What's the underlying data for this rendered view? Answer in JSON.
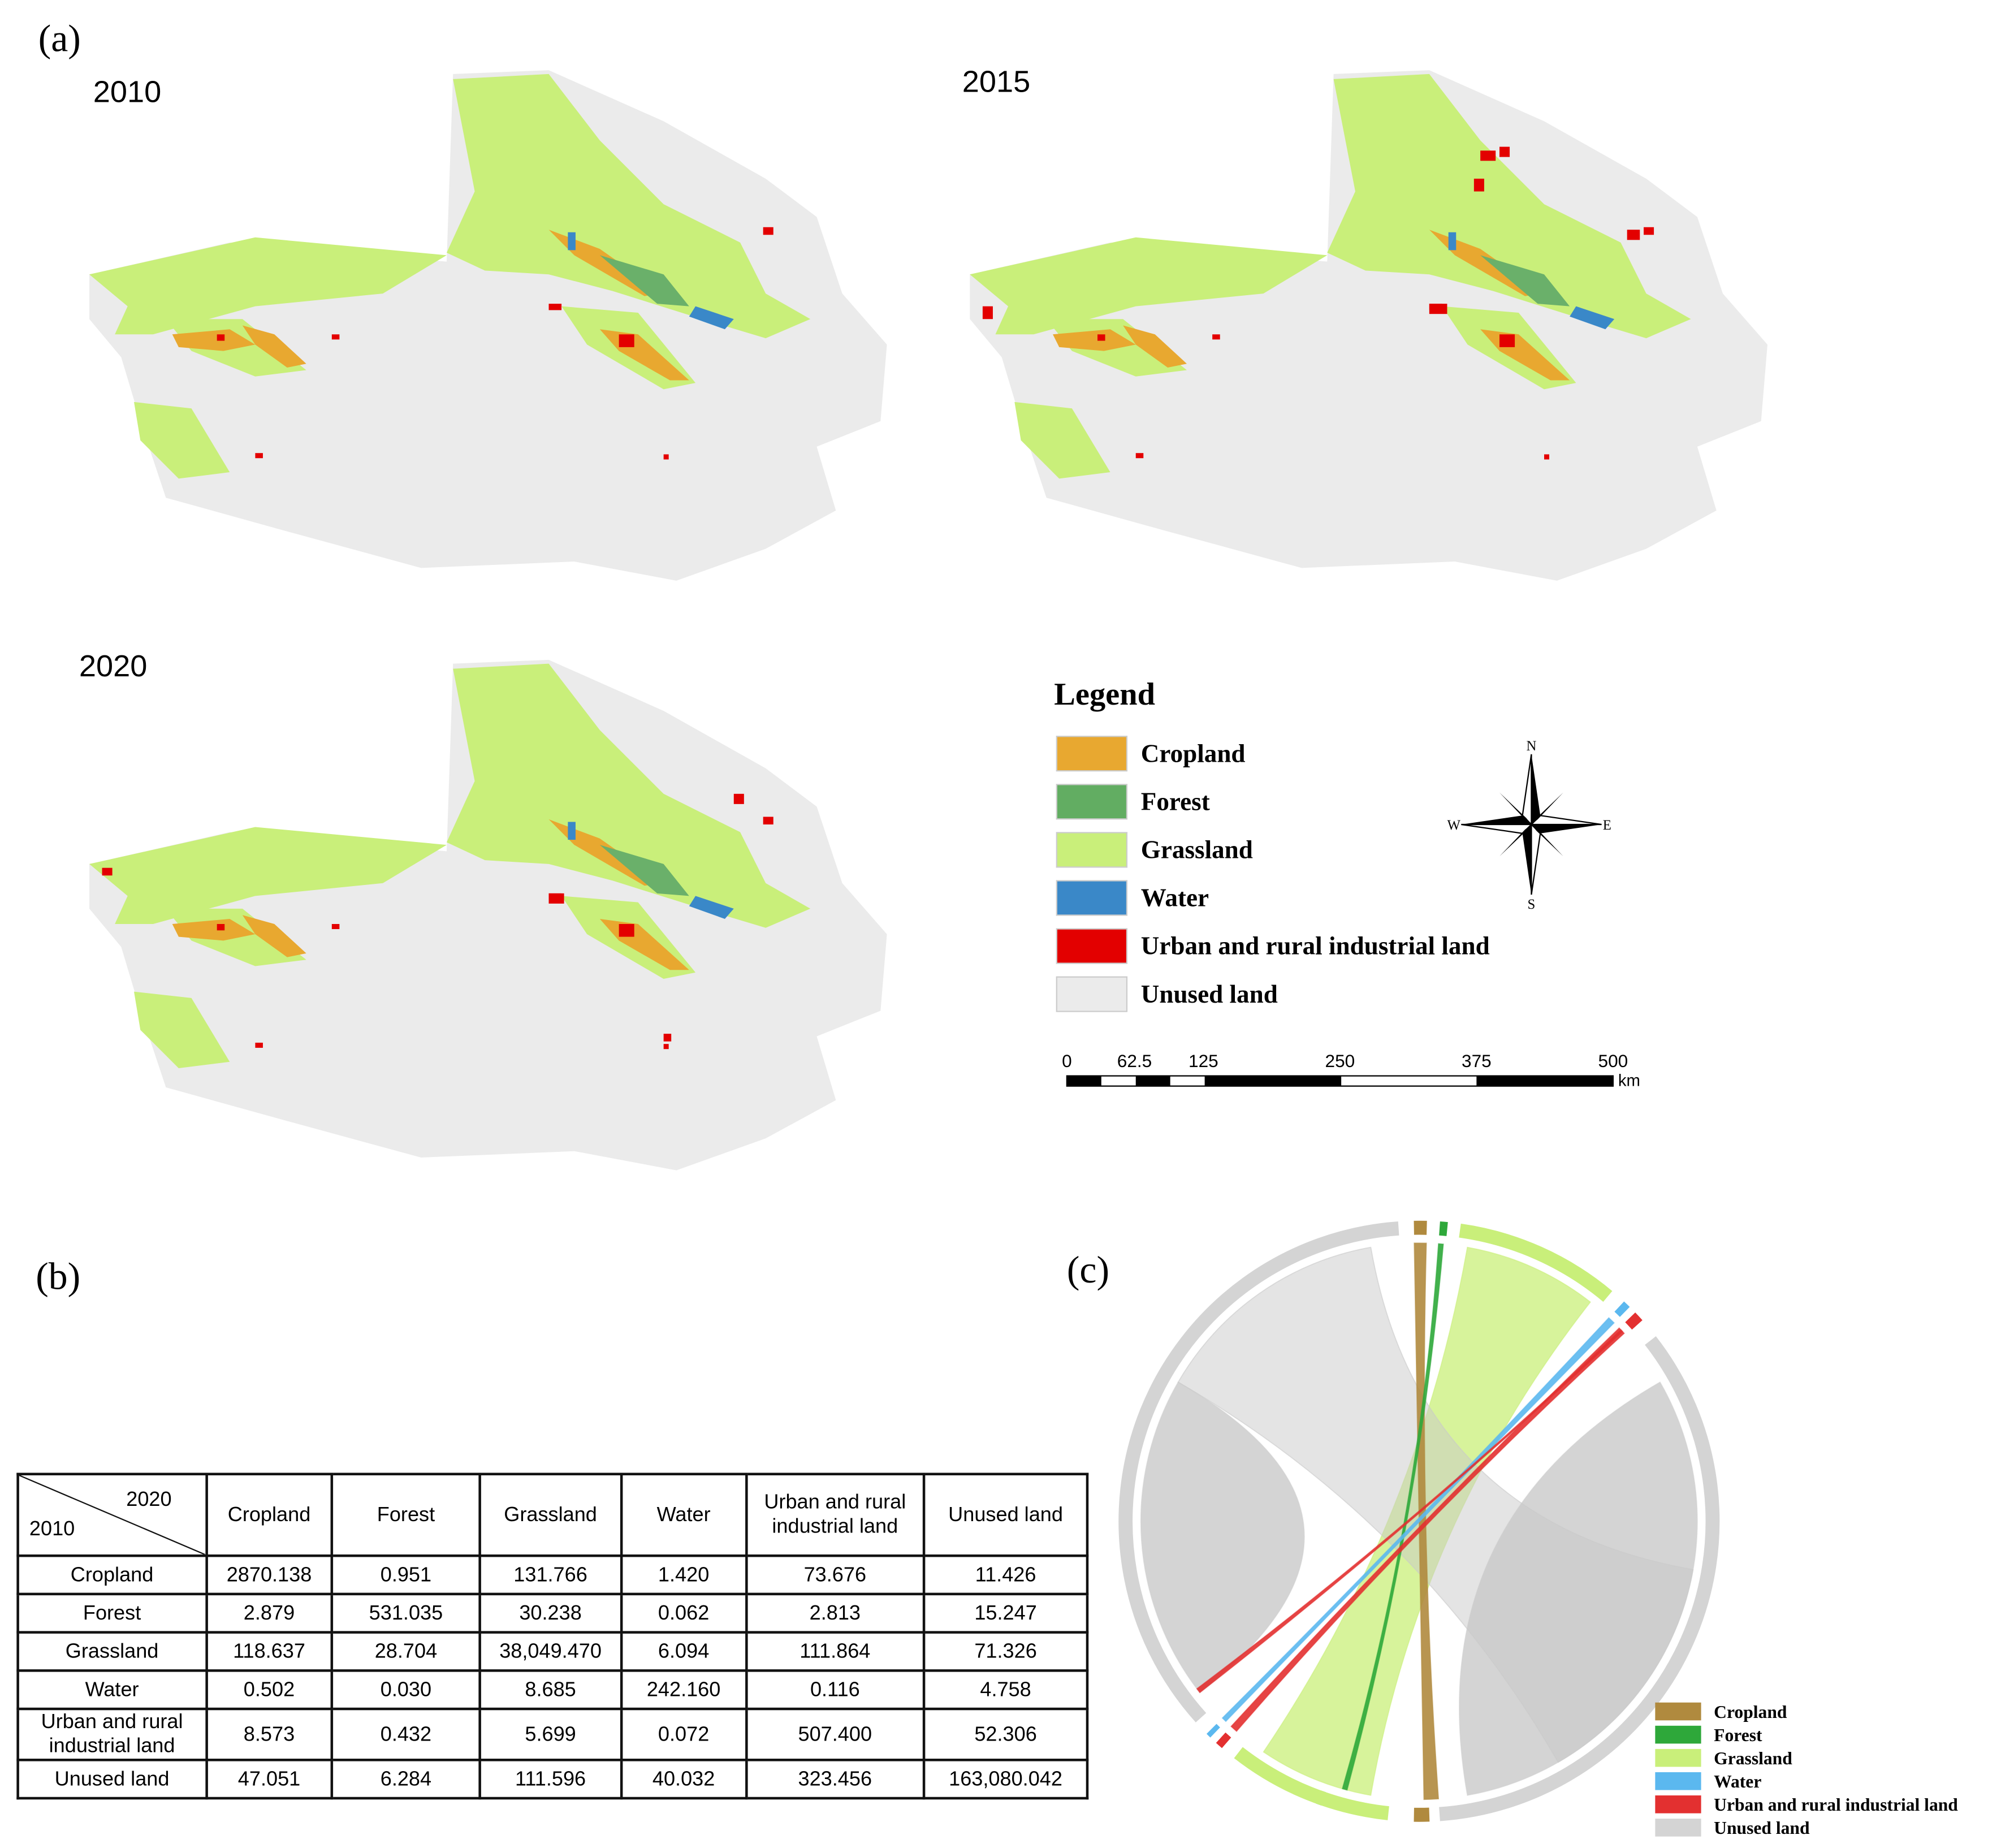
{
  "panels": {
    "a": "(a)",
    "b": "(b)",
    "c": "(c)"
  },
  "maps": {
    "years": [
      "2010",
      "2015",
      "2020"
    ]
  },
  "legend": {
    "title": "Legend",
    "items": [
      "Cropland",
      "Forest",
      "Grassland",
      "Water",
      "Urban and rural industrial land",
      "Unused land"
    ]
  },
  "compass": {
    "n": "N",
    "s": "S",
    "e": "E",
    "w": "W"
  },
  "scale_bar": {
    "labels": [
      "0",
      "62.5",
      "125",
      "250",
      "375",
      "500"
    ],
    "unit": "km"
  },
  "table": {
    "corner_top": "2020",
    "corner_bottom": "2010",
    "header": [
      "Cropland",
      "Forest",
      "Grassland",
      "Water",
      "Urban and rural industrial land",
      "Unused land"
    ],
    "rows": [
      [
        "Cropland",
        "2870.138",
        "0.951",
        "131.766",
        "1.420",
        "73.676",
        "11.426"
      ],
      [
        "Forest",
        "2.879",
        "531.035",
        "30.238",
        "0.062",
        "2.813",
        "15.247"
      ],
      [
        "Grassland",
        "118.637",
        "28.704",
        "38,049.470",
        "6.094",
        "111.864",
        "71.326"
      ],
      [
        "Water",
        "0.502",
        "0.030",
        "8.685",
        "242.160",
        "0.116",
        "4.758"
      ],
      [
        "Urban and rural industrial land",
        "8.573",
        "0.432",
        "5.699",
        "0.072",
        "507.400",
        "52.306"
      ],
      [
        "Unused land",
        "47.051",
        "6.284",
        "111.596",
        "40.032",
        "323.456",
        "163,080.042"
      ]
    ]
  },
  "chord_legend": [
    "Cropland",
    "Forest",
    "Grassland",
    "Water",
    "Urban and rural industrial land",
    "Unused land"
  ]
}
